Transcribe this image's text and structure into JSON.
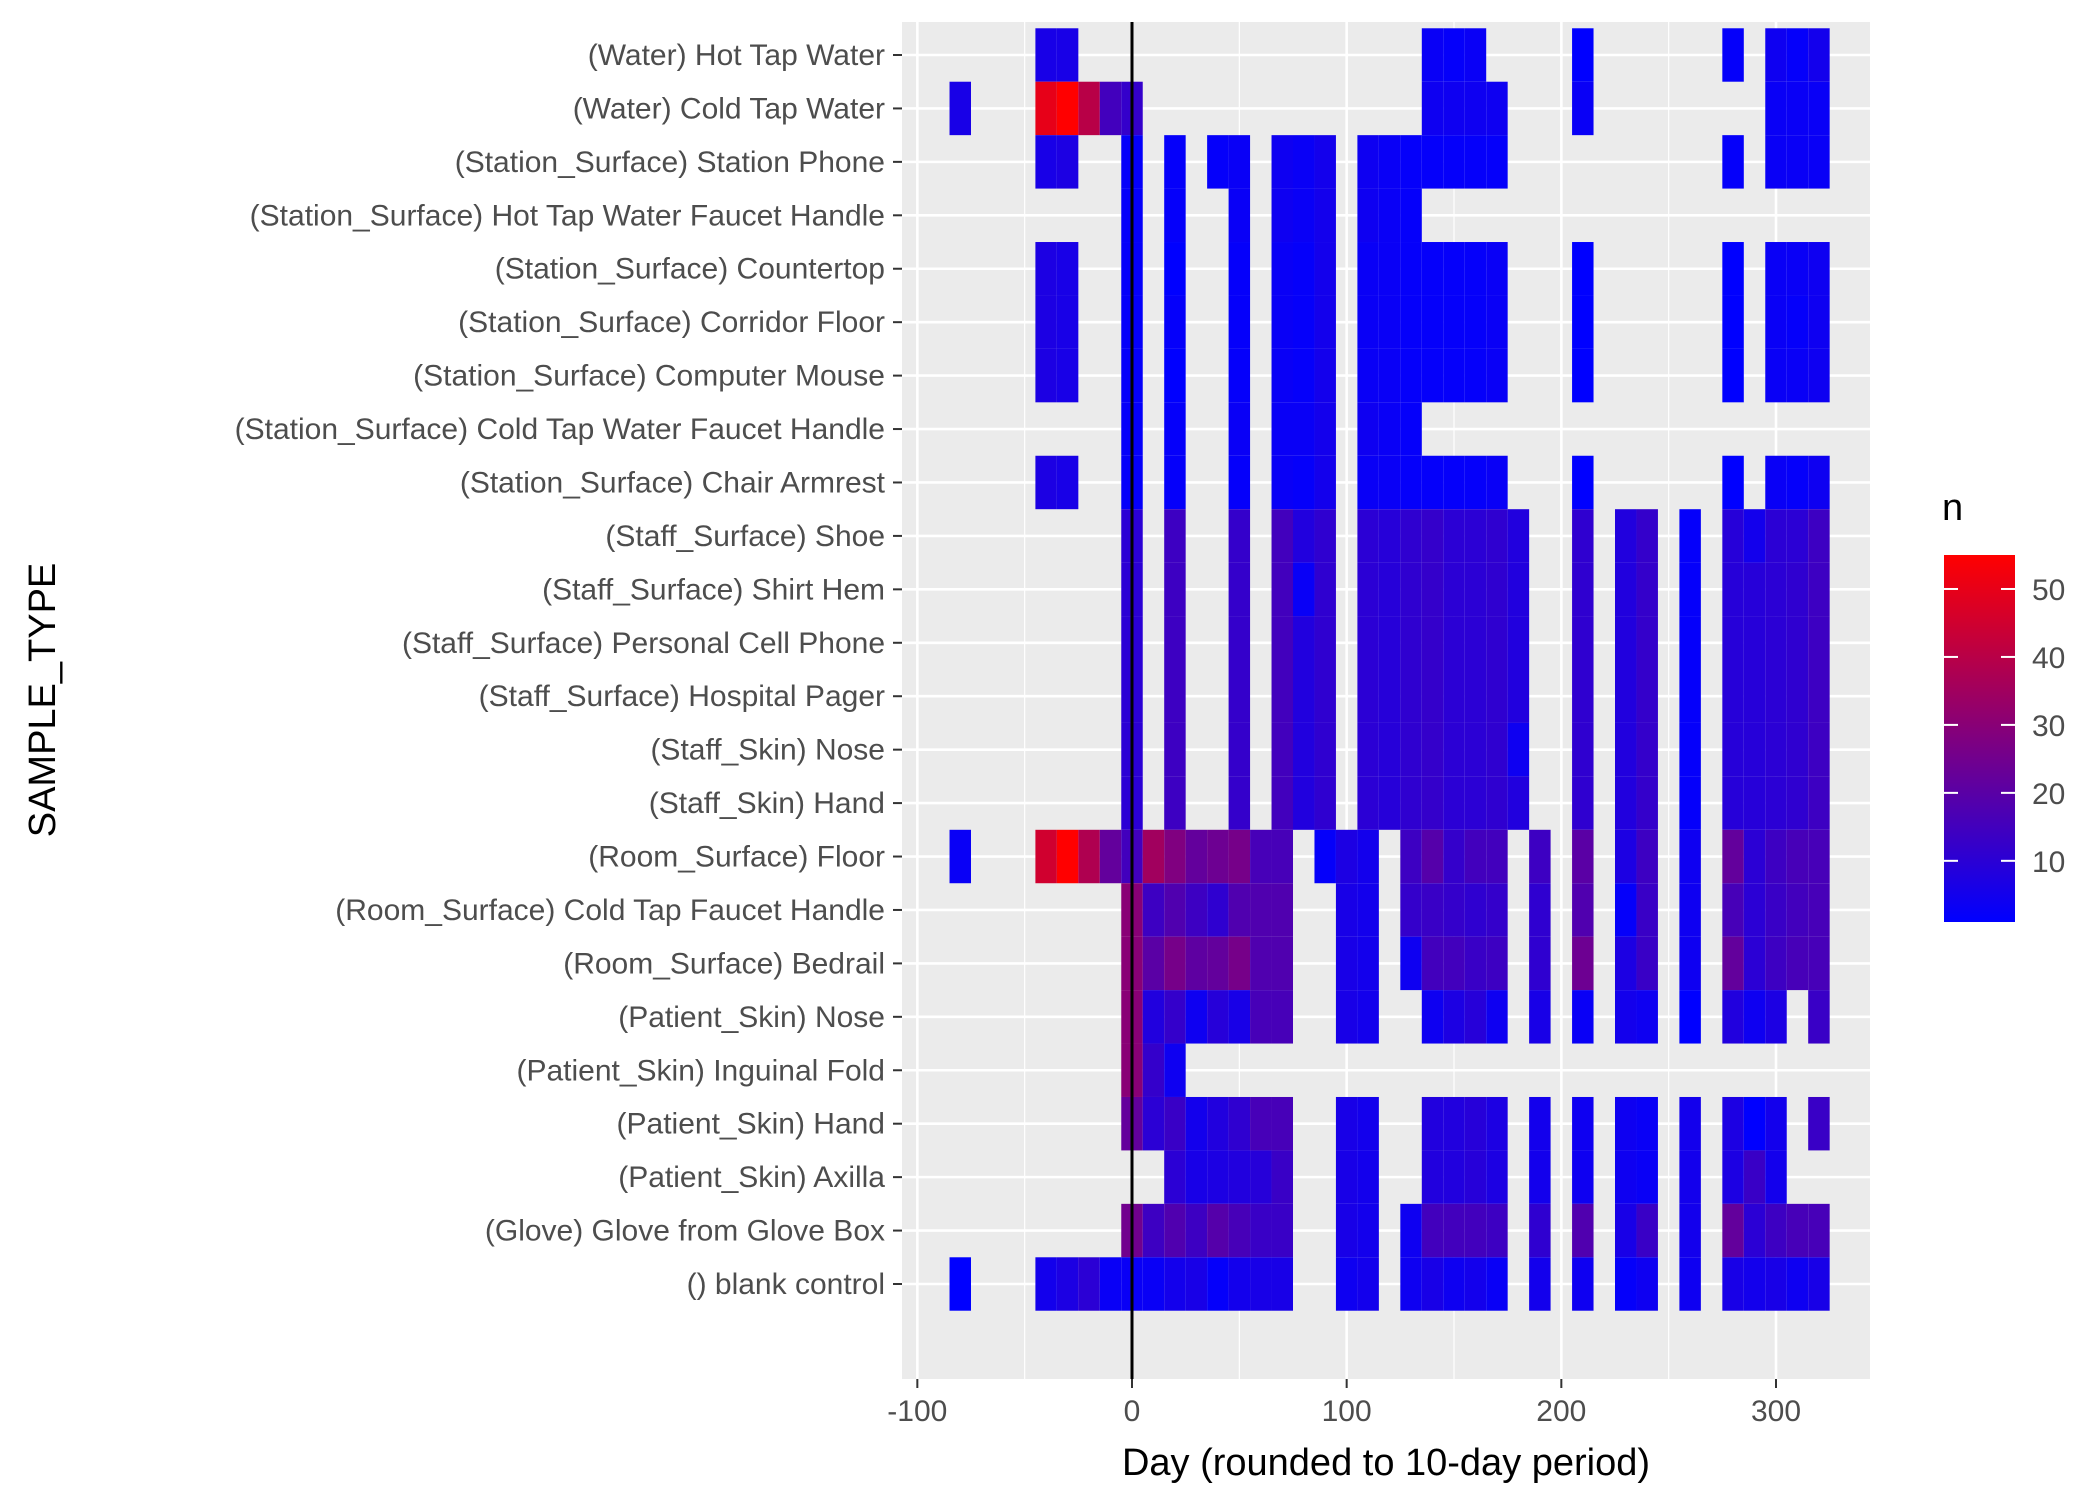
{
  "chart_data": {
    "type": "heatmap",
    "xlabel": "Day (rounded to 10-day period)",
    "ylabel": "SAMPLE_TYPE",
    "x_ticks": [
      -100,
      0,
      100,
      200,
      300
    ],
    "x_tick_labels": [
      "-100",
      "0",
      "100",
      "200",
      "300"
    ],
    "xlim": [
      -105,
      345
    ],
    "tile_width_days": 10,
    "vline_x": 0,
    "grid": true,
    "legend": {
      "title": "n",
      "position": "right",
      "ticks": [
        10,
        20,
        30,
        40,
        50
      ],
      "tick_labels": [
        "10",
        "20",
        "30",
        "40",
        "50"
      ],
      "range": [
        1,
        55
      ],
      "low_color": "#0000FF",
      "high_color": "#FF0000"
    },
    "colors": {
      "panel_background": "#EBEBEB",
      "grid": "#FFFFFF",
      "vline": "#000000"
    },
    "categories": [
      "(Water) Hot Tap Water",
      "(Water) Cold Tap Water",
      "(Station_Surface) Station Phone",
      "(Station_Surface) Hot Tap Water Faucet Handle",
      "(Station_Surface) Countertop",
      "(Station_Surface) Corridor Floor",
      "(Station_Surface) Computer Mouse",
      "(Station_Surface) Cold Tap Water Faucet Handle",
      "(Station_Surface) Chair Armrest",
      "(Staff_Surface) Shoe",
      "(Staff_Surface) Shirt Hem",
      "(Staff_Surface) Personal Cell Phone",
      "(Staff_Surface) Hospital Pager",
      "(Staff_Skin) Nose",
      "(Staff_Skin) Hand",
      "(Room_Surface) Floor",
      "(Room_Surface) Cold Tap Faucet Handle",
      "(Room_Surface) Bedrail",
      "(Patient_Skin) Nose",
      "(Patient_Skin) Inguinal Fold",
      "(Patient_Skin) Hand",
      "(Patient_Skin) Axilla",
      "(Glove) Glove from Glove Box",
      "() blank control"
    ],
    "rows": [
      {
        "x": [
          -40,
          -30,
          140,
          150,
          160,
          210,
          280,
          300,
          310,
          320
        ],
        "n": [
          6,
          6,
          3,
          2,
          3,
          1,
          2,
          4,
          2,
          5
        ]
      },
      {
        "x": [
          -80,
          -40,
          -30,
          -20,
          -10,
          0,
          140,
          150,
          160,
          170,
          210,
          300,
          310,
          320
        ],
        "n": [
          6,
          50,
          55,
          40,
          15,
          12,
          4,
          4,
          4,
          4,
          3,
          3,
          3,
          3
        ]
      },
      {
        "x": [
          -40,
          -30,
          0,
          20,
          40,
          50,
          70,
          80,
          90,
          110,
          120,
          130,
          140,
          150,
          160,
          170,
          280,
          300,
          310,
          320
        ],
        "n": [
          6,
          7,
          2,
          2,
          2,
          3,
          4,
          3,
          5,
          4,
          3,
          2,
          2,
          2,
          2,
          2,
          2,
          3,
          3,
          3
        ]
      },
      {
        "x": [
          0,
          20,
          50,
          70,
          80,
          90,
          110,
          120,
          130
        ],
        "n": [
          2,
          2,
          3,
          4,
          3,
          5,
          4,
          3,
          2
        ]
      },
      {
        "x": [
          -40,
          -30,
          0,
          20,
          50,
          70,
          80,
          90,
          110,
          120,
          130,
          140,
          150,
          160,
          170,
          210,
          280,
          300,
          310,
          320
        ],
        "n": [
          7,
          6,
          2,
          1,
          2,
          3,
          2,
          5,
          3,
          3,
          2,
          2,
          2,
          2,
          3,
          1,
          1,
          3,
          3,
          4
        ]
      },
      {
        "x": [
          -40,
          -30,
          0,
          20,
          50,
          70,
          80,
          90,
          110,
          120,
          130,
          140,
          150,
          160,
          170,
          210,
          280,
          300,
          310,
          320
        ],
        "n": [
          7,
          6,
          2,
          2,
          2,
          3,
          2,
          5,
          3,
          3,
          2,
          2,
          2,
          2,
          3,
          1,
          1,
          3,
          2,
          4
        ]
      },
      {
        "x": [
          -40,
          -30,
          0,
          20,
          50,
          70,
          80,
          90,
          110,
          120,
          130,
          140,
          150,
          160,
          170,
          210,
          280,
          300,
          310,
          320
        ],
        "n": [
          7,
          6,
          2,
          1,
          2,
          3,
          2,
          5,
          3,
          3,
          2,
          2,
          2,
          2,
          3,
          1,
          1,
          3,
          3,
          4
        ]
      },
      {
        "x": [
          0,
          20,
          50,
          70,
          80,
          90,
          110,
          120,
          130
        ],
        "n": [
          2,
          2,
          3,
          3,
          3,
          5,
          4,
          3,
          2
        ]
      },
      {
        "x": [
          -40,
          -30,
          0,
          20,
          50,
          70,
          80,
          90,
          110,
          120,
          130,
          140,
          150,
          160,
          170,
          210,
          280,
          300,
          310,
          320
        ],
        "n": [
          7,
          6,
          2,
          2,
          2,
          3,
          2,
          5,
          3,
          3,
          2,
          2,
          2,
          2,
          3,
          1,
          1,
          3,
          2,
          4
        ]
      },
      {
        "x": [
          0,
          20,
          50,
          70,
          80,
          90,
          110,
          120,
          130,
          140,
          150,
          160,
          170,
          180,
          210,
          230,
          240,
          260,
          280,
          290,
          300,
          310,
          320
        ],
        "n": [
          10,
          14,
          12,
          15,
          8,
          11,
          10,
          9,
          11,
          12,
          10,
          10,
          11,
          8,
          11,
          8,
          12,
          2,
          9,
          5,
          10,
          10,
          14
        ]
      },
      {
        "x": [
          0,
          20,
          50,
          70,
          80,
          90,
          110,
          120,
          130,
          140,
          150,
          160,
          170,
          180,
          210,
          230,
          240,
          260,
          280,
          290,
          300,
          310,
          320
        ],
        "n": [
          10,
          14,
          12,
          15,
          3,
          11,
          10,
          9,
          11,
          12,
          10,
          10,
          11,
          8,
          11,
          8,
          12,
          2,
          9,
          9,
          10,
          11,
          14
        ]
      },
      {
        "x": [
          0,
          20,
          50,
          70,
          80,
          90,
          110,
          120,
          130,
          140,
          150,
          160,
          170,
          180,
          210,
          230,
          240,
          260,
          280,
          290,
          300,
          310,
          320
        ],
        "n": [
          10,
          14,
          12,
          15,
          8,
          11,
          10,
          9,
          11,
          12,
          10,
          10,
          11,
          8,
          11,
          8,
          12,
          2,
          9,
          9,
          10,
          11,
          14
        ]
      },
      {
        "x": [
          0,
          20,
          50,
          70,
          80,
          90,
          110,
          120,
          130,
          140,
          150,
          160,
          170,
          180,
          210,
          230,
          240,
          260,
          280,
          290,
          300,
          310,
          320
        ],
        "n": [
          10,
          14,
          12,
          15,
          8,
          11,
          10,
          9,
          11,
          12,
          10,
          10,
          11,
          8,
          11,
          8,
          12,
          2,
          9,
          9,
          10,
          11,
          14
        ]
      },
      {
        "x": [
          0,
          20,
          50,
          70,
          80,
          90,
          110,
          120,
          130,
          140,
          150,
          160,
          170,
          180,
          210,
          230,
          240,
          260,
          280,
          290,
          300,
          310,
          320
        ],
        "n": [
          10,
          14,
          12,
          15,
          8,
          11,
          10,
          9,
          11,
          12,
          10,
          10,
          11,
          4,
          11,
          8,
          12,
          2,
          9,
          9,
          10,
          11,
          14
        ]
      },
      {
        "x": [
          0,
          20,
          50,
          70,
          80,
          90,
          110,
          120,
          130,
          140,
          150,
          160,
          170,
          180,
          210,
          230,
          240,
          260,
          280,
          290,
          300,
          310,
          320
        ],
        "n": [
          10,
          14,
          12,
          15,
          8,
          11,
          10,
          9,
          11,
          12,
          10,
          10,
          11,
          8,
          11,
          8,
          12,
          2,
          9,
          9,
          10,
          11,
          14
        ]
      },
      {
        "x": [
          -80,
          -40,
          -30,
          -20,
          -10,
          0,
          10,
          20,
          30,
          40,
          50,
          60,
          70,
          90,
          100,
          110,
          130,
          140,
          150,
          160,
          170,
          190,
          210,
          230,
          240,
          260,
          280,
          290,
          300,
          310,
          320
        ],
        "n": [
          3,
          45,
          55,
          38,
          22,
          15,
          35,
          28,
          22,
          24,
          26,
          16,
          16,
          2,
          7,
          5,
          14,
          19,
          12,
          15,
          15,
          14,
          20,
          7,
          14,
          4,
          22,
          10,
          14,
          16,
          16
        ]
      },
      {
        "x": [
          0,
          10,
          20,
          30,
          40,
          50,
          60,
          70,
          100,
          110,
          130,
          140,
          150,
          160,
          170,
          190,
          210,
          230,
          240,
          260,
          280,
          290,
          300,
          310,
          320
        ],
        "n": [
          30,
          14,
          18,
          14,
          11,
          18,
          18,
          18,
          6,
          5,
          12,
          13,
          12,
          11,
          12,
          11,
          18,
          2,
          13,
          4,
          16,
          10,
          13,
          15,
          16
        ]
      },
      {
        "x": [
          0,
          10,
          20,
          30,
          40,
          50,
          60,
          70,
          100,
          110,
          130,
          140,
          150,
          160,
          170,
          190,
          210,
          230,
          240,
          260,
          280,
          290,
          300,
          310,
          320
        ],
        "n": [
          30,
          20,
          26,
          21,
          22,
          26,
          18,
          18,
          6,
          5,
          4,
          15,
          15,
          13,
          14,
          11,
          24,
          7,
          13,
          4,
          22,
          10,
          14,
          16,
          16
        ]
      },
      {
        "x": [
          0,
          10,
          20,
          30,
          40,
          50,
          60,
          70,
          100,
          110,
          140,
          150,
          160,
          170,
          190,
          210,
          230,
          240,
          260,
          280,
          290,
          300,
          320
        ],
        "n": [
          30,
          8,
          12,
          4,
          9,
          6,
          16,
          16,
          6,
          5,
          4,
          7,
          9,
          4,
          6,
          3,
          5,
          4,
          1,
          8,
          4,
          7,
          13
        ]
      },
      {
        "x": [
          0,
          10,
          20
        ],
        "n": [
          30,
          12,
          4
        ]
      },
      {
        "x": [
          0,
          10,
          20,
          30,
          40,
          50,
          60,
          70,
          100,
          110,
          140,
          150,
          160,
          170,
          190,
          210,
          230,
          240,
          260,
          280,
          290,
          300,
          320
        ],
        "n": [
          22,
          10,
          13,
          5,
          8,
          11,
          16,
          16,
          6,
          5,
          8,
          8,
          9,
          7,
          5,
          4,
          4,
          3,
          5,
          7,
          1,
          5,
          13
        ]
      },
      {
        "x": [
          20,
          30,
          40,
          50,
          60,
          70,
          100,
          110,
          140,
          150,
          160,
          170,
          190,
          210,
          230,
          240,
          260,
          280,
          290,
          300
        ],
        "n": [
          10,
          6,
          7,
          8,
          9,
          13,
          6,
          5,
          8,
          8,
          9,
          7,
          5,
          4,
          4,
          3,
          5,
          7,
          13,
          5
        ]
      },
      {
        "x": [
          0,
          10,
          20,
          30,
          40,
          50,
          60,
          70,
          100,
          110,
          130,
          140,
          150,
          160,
          170,
          190,
          210,
          230,
          240,
          260,
          280,
          290,
          300,
          310,
          320
        ],
        "n": [
          25,
          14,
          18,
          14,
          19,
          16,
          13,
          13,
          6,
          5,
          4,
          15,
          15,
          15,
          14,
          11,
          18,
          6,
          13,
          5,
          22,
          10,
          14,
          16,
          16
        ]
      },
      {
        "x": [
          -80,
          -40,
          -30,
          -20,
          -10,
          0,
          10,
          20,
          30,
          40,
          50,
          60,
          70,
          100,
          110,
          130,
          140,
          150,
          160,
          170,
          190,
          210,
          230,
          240,
          260,
          280,
          290,
          300,
          310,
          320
        ],
        "n": [
          1,
          5,
          7,
          10,
          3,
          3,
          3,
          5,
          6,
          2,
          5,
          6,
          6,
          4,
          5,
          4,
          6,
          4,
          5,
          3,
          5,
          4,
          2,
          4,
          4,
          6,
          5,
          6,
          4,
          6
        ]
      }
    ]
  }
}
